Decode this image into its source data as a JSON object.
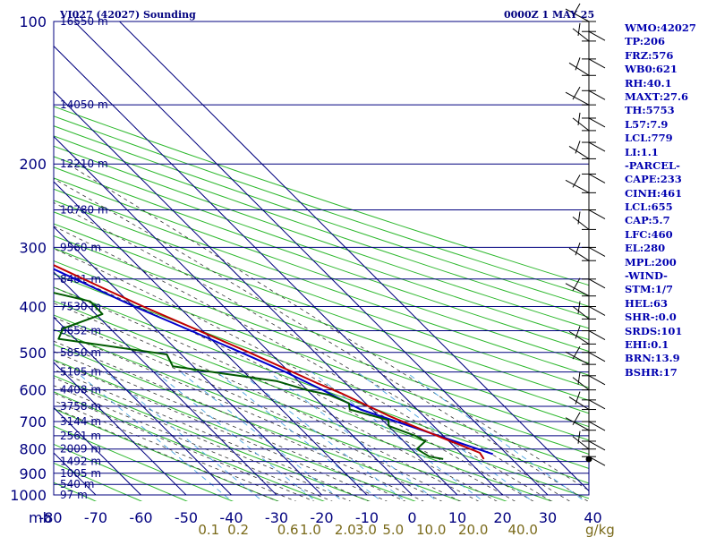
{
  "header": {
    "title": "VI027 (42027) Sounding",
    "datetime": "0000Z  1 MAY 25"
  },
  "indices": [
    "WMO:42027",
    "TP:206",
    "FRZ:576",
    "WB0:621",
    "RH:40.1",
    "MAXT:27.6",
    "TH:5753",
    "L57:7.9",
    "LCL:779",
    "LI:1.1",
    "-PARCEL-",
    "CAPE:233",
    "CINH:461",
    "LCL:655",
    "CAP:5.7",
    "LFC:460",
    "EL:280",
    "MPL:200",
    "-WIND-",
    "STM:1/7",
    "HEL:63",
    "SHR-:0.0",
    "SRDS:101",
    "EHI:0.1",
    "BRN:13.9",
    "BSHR:17"
  ],
  "colors": {
    "isobar": "#00007f",
    "isotherm": "#00007f",
    "dry_adiabat": "#2eb82e",
    "moist_adiabat": "#333333",
    "mixing_ratio": "#4aa3df",
    "temperature": "#c00000",
    "dewpoint": "#005a00",
    "parcel": "#0000cc",
    "axis_text": "#00007f",
    "mixing_label": "#7a6a1a"
  },
  "chart_data": {
    "type": "line",
    "diagram": "skew-t log-p",
    "pressure_unit_label": "mb",
    "pressure_levels": [
      100,
      200,
      300,
      400,
      500,
      600,
      700,
      800,
      900,
      1000
    ],
    "y_tick_labels": [
      "100",
      "200",
      "300",
      "400",
      "500",
      "600",
      "700",
      "800",
      "900",
      "1000"
    ],
    "x_ticks": [
      -80,
      -70,
      -60,
      -50,
      -40,
      -30,
      -20,
      -10,
      0,
      10,
      20,
      30,
      40
    ],
    "x_tick_labels": [
      "-80",
      "-70",
      "-60",
      "-50",
      "-40",
      "-30",
      "-20",
      "-10",
      "0",
      "10",
      "20",
      "30",
      "40"
    ],
    "heights": [
      {
        "label": "16550 m",
        "p": 100
      },
      {
        "label": "14050 m",
        "p": 150
      },
      {
        "label": "12210 m",
        "p": 200
      },
      {
        "label": "10780 m",
        "p": 250
      },
      {
        "label": "9560 m",
        "p": 300
      },
      {
        "label": "8481 m",
        "p": 350
      },
      {
        "label": "7530 m",
        "p": 400
      },
      {
        "label": "6652 m",
        "p": 450
      },
      {
        "label": "5850 m",
        "p": 500
      },
      {
        "label": "5105 m",
        "p": 550
      },
      {
        "label": "4408 m",
        "p": 600
      },
      {
        "label": "3758 m",
        "p": 650
      },
      {
        "label": "3144 m",
        "p": 700
      },
      {
        "label": "2561 m",
        "p": 750
      },
      {
        "label": "2009 m",
        "p": 800
      },
      {
        "label": "1492 m",
        "p": 850
      },
      {
        "label": "1005 m",
        "p": 900
      },
      {
        "label": "540 m",
        "p": 950
      },
      {
        "label": "97 m",
        "p": 1000
      }
    ],
    "mixing_ratio_labels": [
      {
        "label": "0.1",
        "t": -45
      },
      {
        "label": "0.2",
        "t": -38.5
      },
      {
        "label": "0.6",
        "t": -27.5
      },
      {
        "label": "1.0",
        "t": -22.5
      },
      {
        "label": "2.0",
        "t": -14.8
      },
      {
        "label": "3.0",
        "t": -10.2
      },
      {
        "label": "5.0",
        "t": -4.2
      },
      {
        "label": "10.0",
        "t": 4.2
      },
      {
        "label": "20.0",
        "t": 13.5
      },
      {
        "label": "40.0",
        "t": 24.5
      }
    ],
    "mixing_ratio_unit": "g/kg",
    "series": [
      {
        "key": "temperature",
        "points": [
          {
            "p": 840,
            "t": 23.8
          },
          {
            "p": 815,
            "t": 24.3
          },
          {
            "p": 730,
            "t": 16.8
          },
          {
            "p": 680,
            "t": 12.3
          },
          {
            "p": 610,
            "t": 6.8
          },
          {
            "p": 580,
            "t": 3.7
          },
          {
            "p": 500,
            "t": -4.5
          },
          {
            "p": 460,
            "t": -9.5
          },
          {
            "p": 400,
            "t": -17.8
          },
          {
            "p": 370,
            "t": -22
          },
          {
            "p": 300,
            "t": -33
          },
          {
            "p": 270,
            "t": -37.5
          },
          {
            "p": 235,
            "t": -45.3
          },
          {
            "p": 213,
            "t": -50.7
          },
          {
            "p": 200,
            "t": -51
          },
          {
            "p": 182,
            "t": -48.5
          },
          {
            "p": 178,
            "t": -50
          },
          {
            "p": 160,
            "t": -55.5
          },
          {
            "p": 150,
            "t": -58.5
          },
          {
            "p": 130,
            "t": -65
          },
          {
            "p": 120,
            "t": -67.5
          },
          {
            "p": 100,
            "t": -73
          }
        ]
      },
      {
        "key": "dewpoint",
        "points": [
          {
            "p": 840,
            "t": 14.8
          },
          {
            "p": 830,
            "t": 12.3
          },
          {
            "p": 800,
            "t": 11.2
          },
          {
            "p": 770,
            "t": 14.8
          },
          {
            "p": 750,
            "t": 13.8
          },
          {
            "p": 715,
            "t": 10.1
          },
          {
            "p": 695,
            "t": 11.3
          },
          {
            "p": 660,
            "t": 5.1
          },
          {
            "p": 640,
            "t": 6.3
          },
          {
            "p": 615,
            "t": 3.8
          },
          {
            "p": 600,
            "t": -0.2
          },
          {
            "p": 575,
            "t": -4.7
          },
          {
            "p": 555,
            "t": -14.5
          },
          {
            "p": 535,
            "t": -24.5
          },
          {
            "p": 505,
            "t": -23.2
          },
          {
            "p": 468,
            "t": -43.7
          },
          {
            "p": 445,
            "t": -40.4
          },
          {
            "p": 415,
            "t": -28.5
          },
          {
            "p": 390,
            "t": -28.4
          },
          {
            "p": 355,
            "t": -42.4
          },
          {
            "p": 300,
            "t": -57.5
          },
          {
            "p": 248,
            "t": -63
          },
          {
            "p": 222,
            "t": -70.4
          },
          {
            "p": 210,
            "t": -59.8
          },
          {
            "p": 200,
            "t": -67.4
          },
          {
            "p": 190,
            "t": -82.9
          }
        ]
      },
      {
        "key": "parcel",
        "points": [
          {
            "p": 820,
            "t": 26.9
          },
          {
            "p": 660,
            "t": 7.5
          },
          {
            "p": 630,
            "t": 5.5
          },
          {
            "p": 600,
            "t": 3.4
          },
          {
            "p": 550,
            "t": -0.8
          },
          {
            "p": 500,
            "t": -6.3
          },
          {
            "p": 450,
            "t": -12.6
          },
          {
            "p": 400,
            "t": -19.8
          },
          {
            "p": 350,
            "t": -26.8
          },
          {
            "p": 300,
            "t": -34.8
          },
          {
            "p": 250,
            "t": -45.3
          },
          {
            "p": 200,
            "t": -56.5
          },
          {
            "p": 150,
            "t": -71.6
          },
          {
            "p": 146,
            "t": -76
          }
        ]
      }
    ],
    "wind_barb_pressures": [
      100,
      105,
      110,
      120,
      130,
      140,
      150,
      160,
      170,
      180,
      195,
      210,
      230,
      250,
      275,
      300,
      320,
      350,
      380,
      400,
      425,
      450,
      480,
      500,
      530,
      560,
      600,
      630,
      660,
      700,
      730,
      770,
      800,
      830
    ]
  }
}
